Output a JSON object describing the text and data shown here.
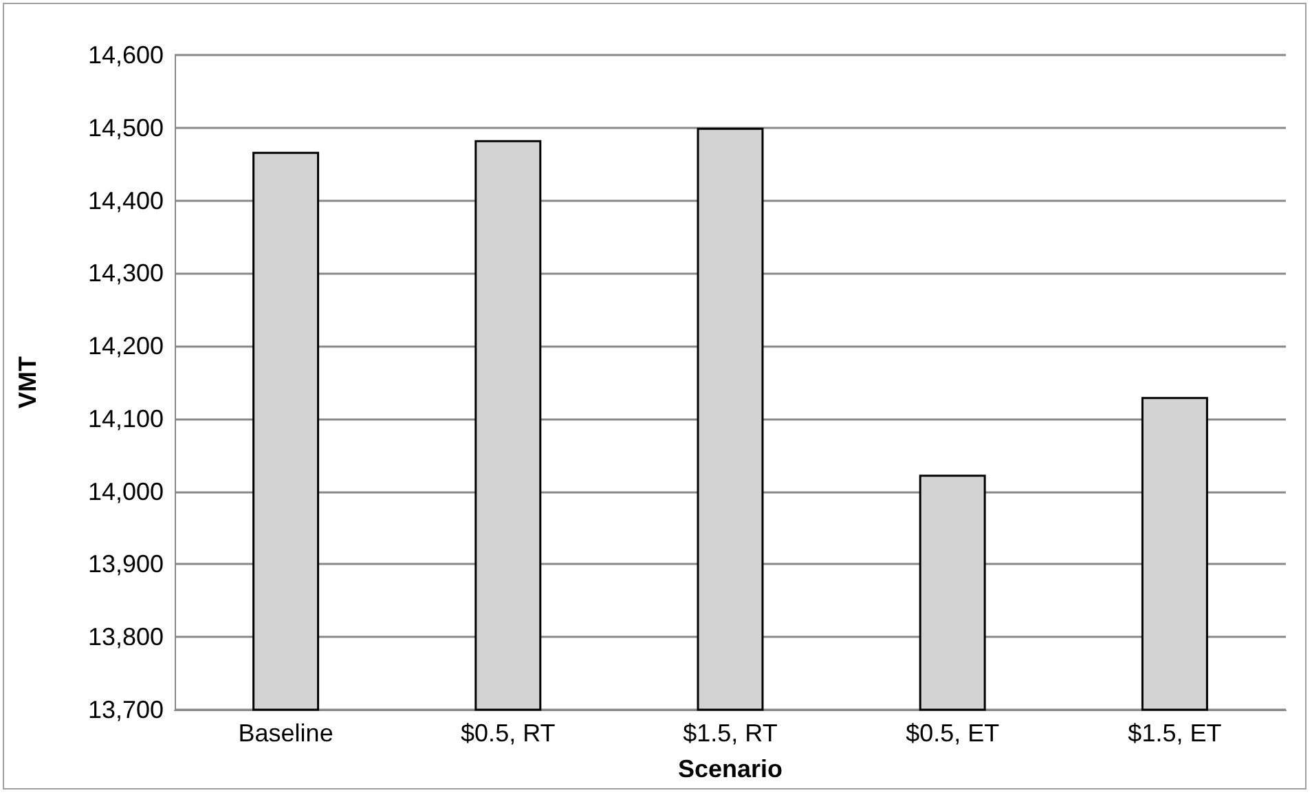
{
  "chart_data": {
    "type": "bar",
    "xlabel": "Scenario",
    "ylabel": "VMT",
    "categories": [
      "Baseline",
      "$0.5, RT",
      "$1.5, RT",
      "$0.5, ET",
      "$1.5, ET"
    ],
    "values": [
      14467,
      14483,
      14500,
      14023,
      14130
    ],
    "color": "#d3d3d3",
    "ylim": [
      13700,
      14600
    ],
    "yticks": [
      {
        "value": 13700,
        "label": "13,700"
      },
      {
        "value": 13800,
        "label": "13,800"
      },
      {
        "value": 13900,
        "label": "13,900"
      },
      {
        "value": 14000,
        "label": "14,000"
      },
      {
        "value": 14100,
        "label": "14,100"
      },
      {
        "value": 14200,
        "label": "14,200"
      },
      {
        "value": 14300,
        "label": "14,300"
      },
      {
        "value": 14400,
        "label": "14,400"
      },
      {
        "value": 14500,
        "label": "14,500"
      },
      {
        "value": 14600,
        "label": "14,600"
      }
    ],
    "grid": "y"
  }
}
